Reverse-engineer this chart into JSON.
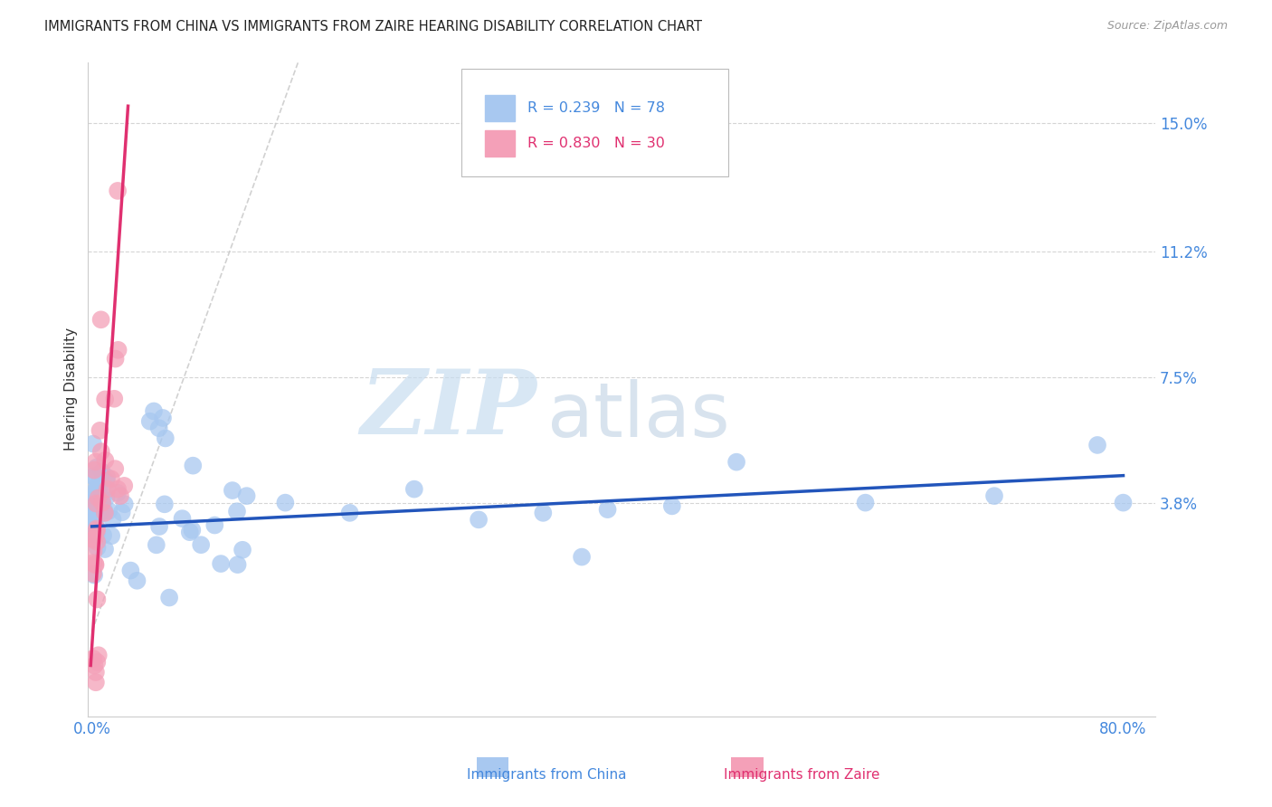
{
  "title": "IMMIGRANTS FROM CHINA VS IMMIGRANTS FROM ZAIRE HEARING DISABILITY CORRELATION CHART",
  "source": "Source: ZipAtlas.com",
  "ylabel": "Hearing Disability",
  "legend_china": "Immigrants from China",
  "legend_zaire": "Immigrants from Zaire",
  "R_china": "0.239",
  "N_china": "78",
  "R_zaire": "0.830",
  "N_zaire": "30",
  "color_china": "#a8c8f0",
  "color_zaire": "#f4a0b8",
  "color_line_china": "#2255bb",
  "color_line_zaire": "#e03070",
  "color_axis_labels": "#4488dd",
  "background_color": "#ffffff",
  "xlim": [
    -0.003,
    0.825
  ],
  "ylim": [
    -0.025,
    0.168
  ],
  "ytick_vals": [
    0.038,
    0.075,
    0.112,
    0.15
  ],
  "ytick_labels": [
    "3.8%",
    "7.5%",
    "11.2%",
    "15.0%"
  ],
  "watermark_zip": "ZIP",
  "watermark_atlas": "atlas",
  "china_line_x0": 0.0,
  "china_line_y0": 0.031,
  "china_line_x1": 0.8,
  "china_line_y1": 0.046,
  "zaire_line_x0": -0.001,
  "zaire_line_y0": -0.01,
  "zaire_line_x1": 0.028,
  "zaire_line_y1": 0.155
}
